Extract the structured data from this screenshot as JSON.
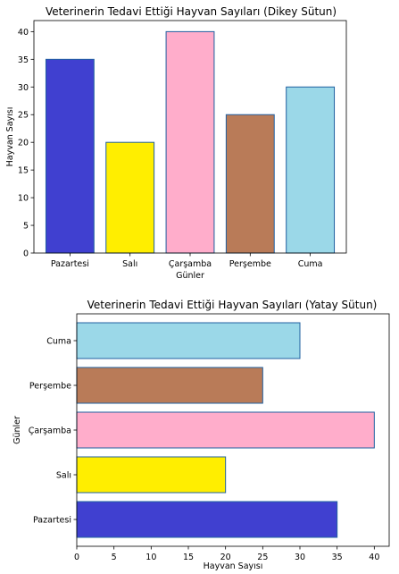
{
  "chart_data": [
    {
      "type": "bar",
      "orientation": "vertical",
      "title": "Veterinerin Tedavi Ettiği Hayvan Sayıları (Dikey Sütun)",
      "xlabel": "Günler",
      "ylabel": "Hayvan Sayısı",
      "categories": [
        "Pazartesi",
        "Salı",
        "Çarşamba",
        "Perşembe",
        "Cuma"
      ],
      "values": [
        35,
        20,
        40,
        25,
        30
      ],
      "colors": [
        "#4040d0",
        "#ffee00",
        "#ffadcb",
        "#b97b58",
        "#9bd8e8"
      ],
      "edge_color": "#2060a0",
      "ylim": [
        0,
        42
      ],
      "yticks": [
        0,
        5,
        10,
        15,
        20,
        25,
        30,
        35,
        40
      ],
      "grid": false
    },
    {
      "type": "bar",
      "orientation": "horizontal",
      "title": "Veterinerin Tedavi Ettiği Hayvan Sayıları (Yatay Sütun)",
      "xlabel": "Hayvan Sayısı",
      "ylabel": "Günler",
      "categories": [
        "Pazartesi",
        "Salı",
        "Çarşamba",
        "Perşembe",
        "Cuma"
      ],
      "values": [
        35,
        20,
        40,
        25,
        30
      ],
      "colors": [
        "#4040d0",
        "#ffee00",
        "#ffadcb",
        "#b97b58",
        "#9bd8e8"
      ],
      "edge_color": "#2060a0",
      "xlim": [
        0,
        42
      ],
      "xticks": [
        0,
        5,
        10,
        15,
        20,
        25,
        30,
        35,
        40
      ],
      "grid": false
    }
  ]
}
